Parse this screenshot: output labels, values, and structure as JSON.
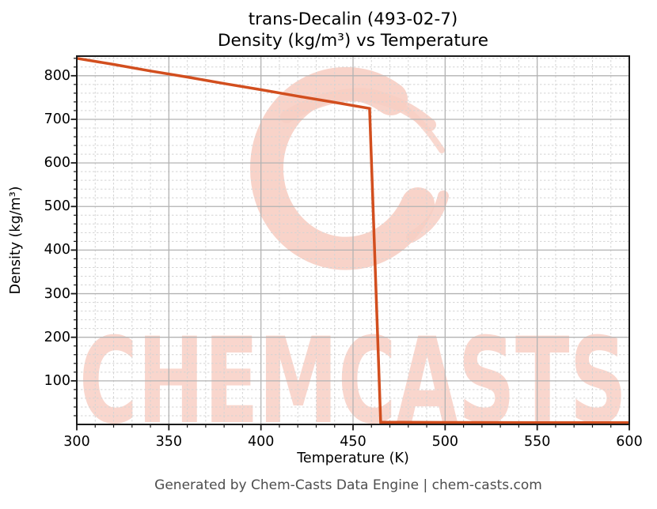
{
  "title": {
    "line1": "trans-Decalin (493-02-7)",
    "line2": "Density (kg/m³) vs Temperature"
  },
  "footer": {
    "text": "Generated by Chem-Casts Data Engine | chem-casts.com"
  },
  "watermark": {
    "text": "CHEMCASTS",
    "text_color": "#f9d6cd",
    "logo_color": "#f7cec3"
  },
  "chart_data": {
    "type": "line",
    "title": "trans-Decalin (493-02-7) Density (kg/m³) vs Temperature",
    "xlabel": "Temperature (K)",
    "ylabel": "Density (kg/m³)",
    "xlim": [
      300,
      600
    ],
    "ylim": [
      0,
      845
    ],
    "xticks": [
      300,
      350,
      400,
      450,
      500,
      550,
      600
    ],
    "yticks": [
      100,
      200,
      300,
      400,
      500,
      600,
      700,
      800
    ],
    "x_minor_step": 10,
    "y_minor_step": 20,
    "grid": true,
    "legend": false,
    "line_color": "#d24e1e",
    "major_grid_color": "#b3b3b3",
    "minor_grid_color": "#d4d4d4",
    "series": [
      {
        "name": "Density",
        "points": [
          [
            300,
            840
          ],
          [
            320,
            826
          ],
          [
            340,
            811
          ],
          [
            360,
            797
          ],
          [
            380,
            782
          ],
          [
            400,
            768
          ],
          [
            420,
            753
          ],
          [
            440,
            739
          ],
          [
            459,
            725
          ],
          [
            465,
            5
          ],
          [
            500,
            4.6
          ],
          [
            550,
            4.2
          ],
          [
            600,
            3.9
          ]
        ]
      }
    ]
  }
}
